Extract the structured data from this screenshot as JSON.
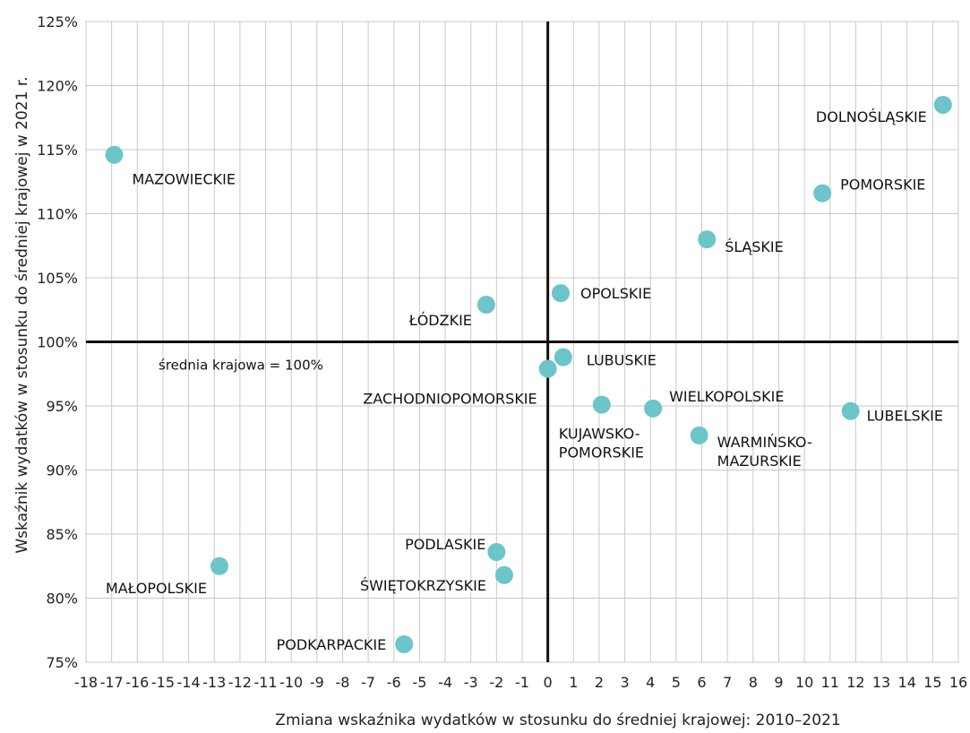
{
  "chart_data": {
    "type": "scatter",
    "title": "",
    "xlabel": "Zmiana wskaźnika wydatków w stosunku do średniej krajowej: 2010–2021",
    "ylabel": "Wskaźnik wydatków w stosunku do średniej krajowej w 2021 r.",
    "xlim": [
      -18,
      16
    ],
    "ylim": [
      75,
      125
    ],
    "x_ticks": [
      "-18",
      "-17",
      "-16",
      "-15",
      "-14",
      "-13",
      "-12",
      "-11",
      "-10",
      "-9",
      "-8",
      "-7",
      "-6",
      "-5",
      "-4",
      "-3",
      "-2",
      "-1",
      "0",
      "1",
      "2",
      "3",
      "4",
      "5",
      "6",
      "7",
      "8",
      "9",
      "10",
      "11",
      "12",
      "13",
      "14",
      "15",
      "16"
    ],
    "y_ticks": [
      "75%",
      "80%",
      "85%",
      "90%",
      "95%",
      "100%",
      "105%",
      "110%",
      "115%",
      "120%",
      "125%"
    ],
    "grid": true,
    "reference_lines": {
      "x": 0,
      "y": 100
    },
    "reference_note": "średnia krajowa = 100%",
    "marker_color": "#6cc5c8",
    "points": [
      {
        "label": "MAZOWIECKIE",
        "x": -16.9,
        "y": 114.6
      },
      {
        "label": "DOLNOŚLĄSKIE",
        "x": 15.4,
        "y": 118.5
      },
      {
        "label": "POMORSKIE",
        "x": 10.7,
        "y": 111.6
      },
      {
        "label": "ŚLĄSKIE",
        "x": 6.2,
        "y": 108.0
      },
      {
        "label": "OPOLSKIE",
        "x": 0.5,
        "y": 103.8
      },
      {
        "label": "ŁÓDZKIE",
        "x": -2.4,
        "y": 102.9
      },
      {
        "label": "LUBUSKIE",
        "x": 0.6,
        "y": 98.8
      },
      {
        "label": "ZACHODNIOPOMORSKIE",
        "x": 0.0,
        "y": 97.9
      },
      {
        "label": "KUJAWSKO-\nPOMORSKIE",
        "x": 2.1,
        "y": 95.1
      },
      {
        "label": "WIELKOPOLSKIE",
        "x": 4.1,
        "y": 94.8
      },
      {
        "label": "WARMIŃSKO-\nMAZURSKIE",
        "x": 5.9,
        "y": 92.7
      },
      {
        "label": "LUBELSKIE",
        "x": 11.8,
        "y": 94.6
      },
      {
        "label": "PODLASKIE",
        "x": -2.0,
        "y": 83.6
      },
      {
        "label": "ŚWIĘTOKRZYSKIE",
        "x": -1.7,
        "y": 81.8
      },
      {
        "label": "MAŁOPOLSKIE",
        "x": -12.8,
        "y": 82.5
      },
      {
        "label": "PODKARPACKIE",
        "x": -5.6,
        "y": 76.4
      }
    ]
  }
}
